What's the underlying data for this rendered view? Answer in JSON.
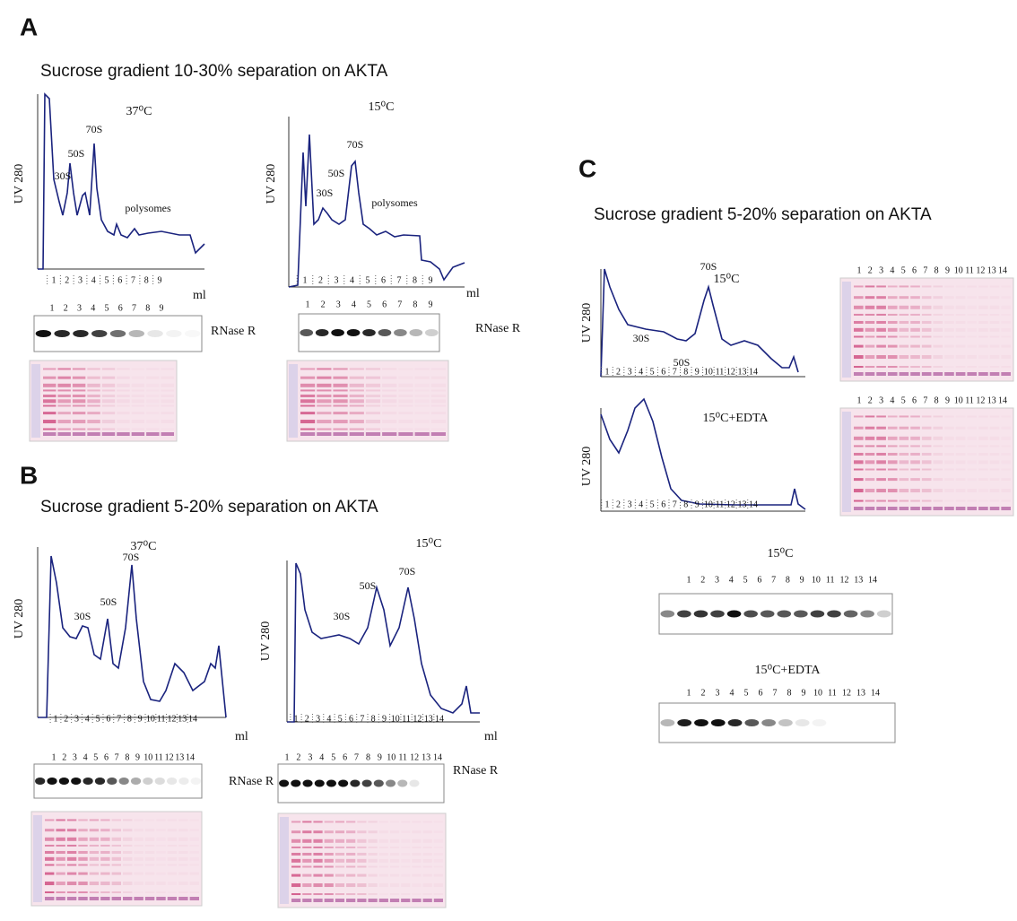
{
  "panels": [
    {
      "letter": "A",
      "heading": "Sucrose gradient 10-30% separation on AKTA",
      "profiles": [
        {
          "condition": "37⁰C",
          "y_label": "UV 280",
          "x_label": "ml",
          "peaks": [
            "30S",
            "50S",
            "70S",
            "polysomes"
          ],
          "fractions": [
            1,
            2,
            3,
            4,
            5,
            6,
            7,
            8,
            9
          ],
          "blot": {
            "lanes": [
              1,
              2,
              3,
              4,
              5,
              6,
              7,
              8,
              9
            ],
            "label": "RNase R"
          }
        },
        {
          "condition": "15⁰C",
          "y_label": "UV 280",
          "x_label": "ml",
          "peaks": [
            "30S",
            "50S",
            "70S",
            "polysomes"
          ],
          "fractions": [
            1,
            2,
            3,
            4,
            5,
            6,
            7,
            8,
            9
          ],
          "blot": {
            "lanes": [
              1,
              2,
              3,
              4,
              5,
              6,
              7,
              8,
              9
            ],
            "label": "RNase R"
          }
        }
      ]
    },
    {
      "letter": "B",
      "heading": "Sucrose gradient 5-20% separation on AKTA",
      "profiles": [
        {
          "condition": "37⁰C",
          "y_label": "UV 280",
          "x_label": "ml",
          "peaks": [
            "30S",
            "50S",
            "70S"
          ],
          "fractions": [
            1,
            2,
            3,
            4,
            5,
            6,
            7,
            8,
            9,
            10,
            11,
            12,
            13,
            14
          ],
          "blot": {
            "lanes": [
              1,
              2,
              3,
              4,
              5,
              6,
              7,
              8,
              9,
              10,
              11,
              12,
              13,
              14
            ],
            "label": "RNase R"
          }
        },
        {
          "condition": "15⁰C",
          "y_label": "UV 280",
          "x_label": "ml",
          "peaks": [
            "30S",
            "50S",
            "70S"
          ],
          "fractions": [
            1,
            2,
            3,
            4,
            5,
            6,
            7,
            8,
            9,
            10,
            11,
            12,
            13,
            14
          ],
          "blot": {
            "lanes": [
              1,
              2,
              3,
              4,
              5,
              6,
              7,
              8,
              9,
              10,
              11,
              12,
              13,
              14
            ],
            "label": "RNase R"
          }
        }
      ]
    },
    {
      "letter": "C",
      "heading": "Sucrose gradient 5-20% separation on AKTA",
      "profiles": [
        {
          "condition": "15⁰C",
          "y_label": "UV 280",
          "peaks": [
            "30S",
            "50S",
            "70S"
          ],
          "fractions": [
            1,
            2,
            3,
            4,
            5,
            6,
            7,
            8,
            9,
            10,
            11,
            12,
            13,
            14
          ],
          "gel_lanes": [
            1,
            2,
            3,
            4,
            5,
            6,
            7,
            8,
            9,
            10,
            11,
            12,
            13,
            14
          ]
        },
        {
          "condition": "15⁰C+EDTA",
          "y_label": "UV 280",
          "fractions": [
            1,
            2,
            3,
            4,
            5,
            6,
            7,
            8,
            9,
            10,
            11,
            12,
            13,
            14
          ],
          "gel_lanes": [
            1,
            2,
            3,
            4,
            5,
            6,
            7,
            8,
            9,
            10,
            11,
            12,
            13,
            14
          ]
        }
      ],
      "blots": [
        {
          "label": "15⁰C",
          "lanes": [
            1,
            2,
            3,
            4,
            5,
            6,
            7,
            8,
            9,
            10,
            11,
            12,
            13,
            14
          ]
        },
        {
          "label": "15⁰C+EDTA",
          "lanes": [
            1,
            2,
            3,
            4,
            5,
            6,
            7,
            8,
            9,
            10,
            11,
            12,
            13,
            14
          ]
        }
      ]
    }
  ]
}
